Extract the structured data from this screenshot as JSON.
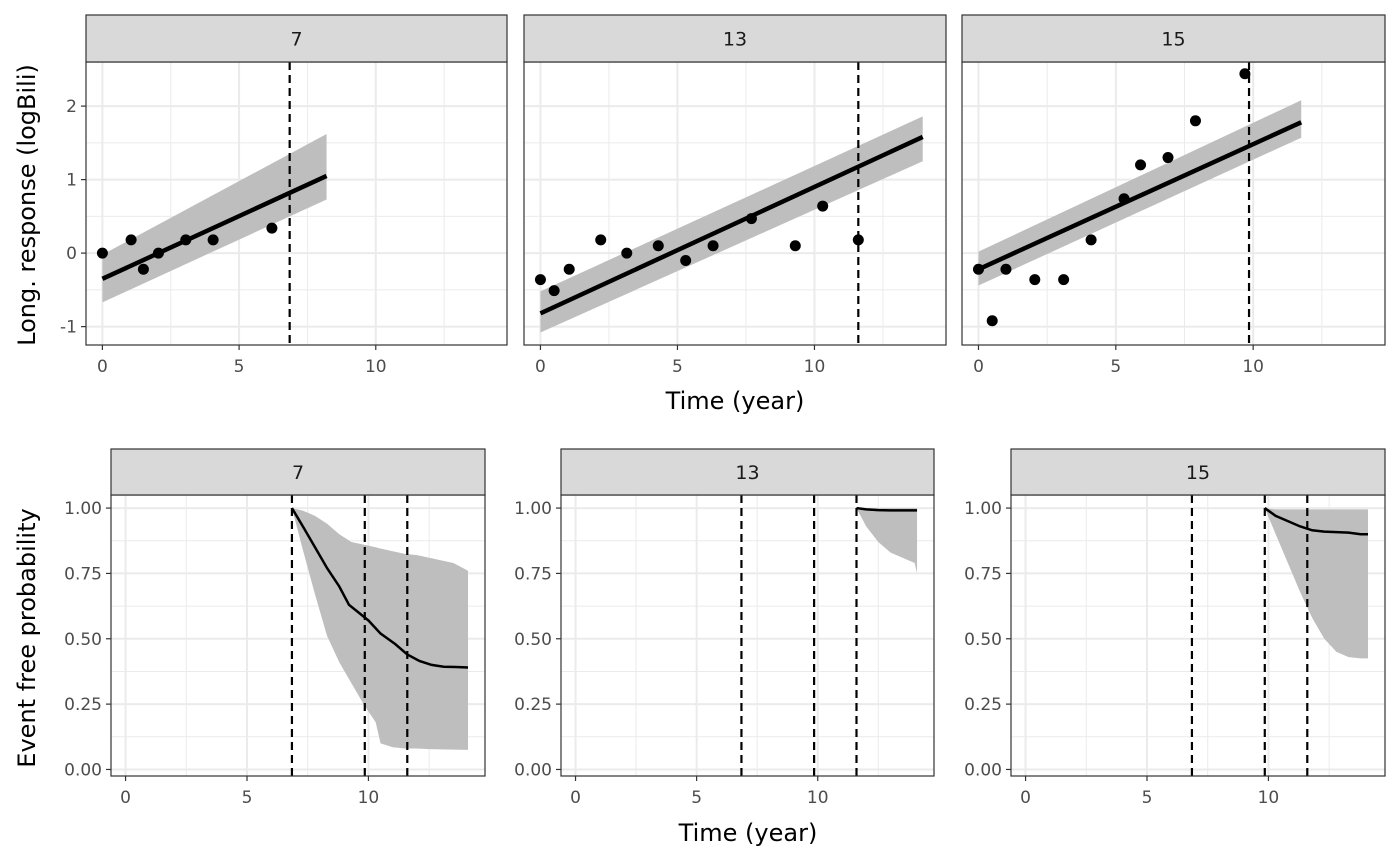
{
  "chart_data": [
    {
      "type": "scatter",
      "facet_label": "7",
      "xlim": [
        -0.6,
        14.8
      ],
      "ylim": [
        -1.25,
        2.6
      ],
      "xticks": [
        0,
        5,
        10
      ],
      "yticks": [
        -1,
        0,
        1,
        2
      ],
      "ytick_labels": [
        "-1",
        "0",
        "1",
        "2"
      ],
      "points": [
        [
          0,
          0
        ],
        [
          1.05,
          0.18
        ],
        [
          1.5,
          -0.22
        ],
        [
          2.05,
          0
        ],
        [
          3.05,
          0.18
        ],
        [
          4.05,
          0.18
        ],
        [
          6.2,
          0.34
        ]
      ],
      "fit_line": [
        [
          0,
          -0.35
        ],
        [
          8.2,
          1.05
        ]
      ],
      "ribbon": {
        "x": [
          0,
          8.2
        ],
        "lower": [
          -0.67,
          0.73
        ],
        "upper": [
          -0.02,
          1.62
        ]
      },
      "vlines": [
        6.85
      ],
      "show_y_axis": true
    },
    {
      "type": "scatter",
      "facet_label": "13",
      "xlim": [
        -0.6,
        14.8
      ],
      "ylim": [
        -1.25,
        2.6
      ],
      "xticks": [
        0,
        5,
        10
      ],
      "yticks": [
        -1,
        0,
        1,
        2
      ],
      "points": [
        [
          0,
          -0.36
        ],
        [
          0.5,
          -0.51
        ],
        [
          1.05,
          -0.22
        ],
        [
          2.2,
          0.18
        ],
        [
          3.15,
          0
        ],
        [
          4.3,
          0.1
        ],
        [
          5.3,
          -0.1
        ],
        [
          6.3,
          0.1
        ],
        [
          7.7,
          0.47
        ],
        [
          9.3,
          0.1
        ],
        [
          10.3,
          0.64
        ],
        [
          11.6,
          0.18
        ]
      ],
      "fit_line": [
        [
          0,
          -0.82
        ],
        [
          13.95,
          1.58
        ]
      ],
      "ribbon": {
        "x": [
          0,
          13.95
        ],
        "lower": [
          -1.08,
          1.25
        ],
        "upper": [
          -0.52,
          1.86
        ]
      },
      "vlines": [
        11.6
      ],
      "show_y_axis": false
    },
    {
      "type": "scatter",
      "facet_label": "15",
      "xlim": [
        -0.6,
        14.8
      ],
      "ylim": [
        -1.25,
        2.6
      ],
      "xticks": [
        0,
        5,
        10
      ],
      "yticks": [
        -1,
        0,
        1,
        2
      ],
      "points": [
        [
          0,
          -0.22
        ],
        [
          0.5,
          -0.92
        ],
        [
          1.0,
          -0.22
        ],
        [
          2.05,
          -0.36
        ],
        [
          3.1,
          -0.36
        ],
        [
          4.1,
          0.18
        ],
        [
          5.3,
          0.74
        ],
        [
          5.9,
          1.2
        ],
        [
          6.9,
          1.3
        ],
        [
          7.9,
          1.8
        ],
        [
          9.7,
          2.44
        ]
      ],
      "fit_line": [
        [
          0,
          -0.22
        ],
        [
          11.75,
          1.78
        ]
      ],
      "ribbon": {
        "x": [
          0,
          11.75
        ],
        "lower": [
          -0.44,
          1.57
        ],
        "upper": [
          0.02,
          2.08
        ]
      },
      "vlines": [
        9.85
      ],
      "show_y_axis": false
    },
    {
      "type": "line",
      "facet_label": "7",
      "xlim": [
        -0.6,
        14.8
      ],
      "ylim": [
        -0.025,
        1.05
      ],
      "xticks": [
        0,
        5,
        10
      ],
      "yticks": [
        0,
        0.25,
        0.5,
        0.75,
        1
      ],
      "ytick_labels": [
        "0.00",
        "0.25",
        "0.50",
        "0.75",
        "1.00"
      ],
      "line": [
        [
          6.85,
          1.0
        ],
        [
          7.3,
          0.93
        ],
        [
          7.8,
          0.85
        ],
        [
          8.3,
          0.77
        ],
        [
          8.8,
          0.7
        ],
        [
          9.2,
          0.63
        ],
        [
          9.6,
          0.6
        ],
        [
          10.0,
          0.57
        ],
        [
          10.5,
          0.52
        ],
        [
          11.1,
          0.48
        ],
        [
          11.6,
          0.44
        ],
        [
          12.1,
          0.415
        ],
        [
          12.6,
          0.4
        ],
        [
          13.1,
          0.393
        ],
        [
          13.6,
          0.392
        ],
        [
          14.1,
          0.39
        ]
      ],
      "ribbon": {
        "x": [
          6.85,
          7.3,
          7.8,
          8.3,
          8.8,
          9.3,
          9.8,
          10.3,
          10.5,
          11.0,
          11.5,
          12.0,
          12.5,
          13.0,
          13.5,
          14.1
        ],
        "lower": [
          1.0,
          0.84,
          0.67,
          0.51,
          0.41,
          0.33,
          0.25,
          0.18,
          0.1,
          0.085,
          0.08,
          0.08,
          0.078,
          0.077,
          0.076,
          0.075
        ],
        "upper": [
          1.0,
          0.99,
          0.97,
          0.94,
          0.9,
          0.87,
          0.86,
          0.85,
          0.845,
          0.835,
          0.825,
          0.82,
          0.81,
          0.8,
          0.79,
          0.76
        ]
      },
      "vlines": [
        6.85,
        9.85,
        11.6
      ],
      "show_y_axis": true
    },
    {
      "type": "line",
      "facet_label": "13",
      "xlim": [
        -0.6,
        14.8
      ],
      "ylim": [
        -0.025,
        1.05
      ],
      "xticks": [
        0,
        5,
        10
      ],
      "yticks": [
        0,
        0.25,
        0.5,
        0.75,
        1
      ],
      "ytick_labels": [
        "0.00",
        "0.25",
        "0.50",
        "0.75",
        "1.00"
      ],
      "line": [
        [
          11.6,
          1.0
        ],
        [
          12.0,
          0.995
        ],
        [
          12.5,
          0.992
        ],
        [
          13.0,
          0.991
        ],
        [
          13.5,
          0.991
        ],
        [
          14.1,
          0.991
        ]
      ],
      "ribbon": {
        "x": [
          11.6,
          12.0,
          12.5,
          13.0,
          13.5,
          14.0,
          14.1
        ],
        "lower": [
          1.0,
          0.93,
          0.87,
          0.83,
          0.81,
          0.79,
          0.75
        ],
        "upper": [
          1.0,
          1.0,
          1.0,
          1.0,
          1.0,
          1.0,
          1.0
        ]
      },
      "vlines": [
        6.85,
        9.85,
        11.6
      ],
      "show_y_axis": true
    },
    {
      "type": "line",
      "facet_label": "15",
      "xlim": [
        -0.6,
        14.8
      ],
      "ylim": [
        -0.025,
        1.05
      ],
      "xticks": [
        0,
        5,
        10
      ],
      "yticks": [
        0,
        0.25,
        0.5,
        0.75,
        1
      ],
      "ytick_labels": [
        "0.00",
        "0.25",
        "0.50",
        "0.75",
        "1.00"
      ],
      "line": [
        [
          9.85,
          1.0
        ],
        [
          10.3,
          0.97
        ],
        [
          10.8,
          0.95
        ],
        [
          11.3,
          0.93
        ],
        [
          11.8,
          0.915
        ],
        [
          12.3,
          0.91
        ],
        [
          12.8,
          0.908
        ],
        [
          13.3,
          0.906
        ],
        [
          13.8,
          0.9
        ],
        [
          14.1,
          0.9
        ]
      ],
      "ribbon": {
        "x": [
          9.85,
          10.3,
          10.8,
          11.3,
          11.8,
          12.3,
          12.8,
          13.3,
          13.8,
          14.1
        ],
        "lower": [
          1.0,
          0.9,
          0.79,
          0.68,
          0.58,
          0.5,
          0.45,
          0.43,
          0.425,
          0.425
        ],
        "upper": [
          1.0,
          0.995,
          0.995,
          0.995,
          0.995,
          0.995,
          0.995,
          0.995,
          0.995,
          0.995
        ]
      },
      "vlines": [
        6.85,
        9.85,
        11.6
      ],
      "show_y_axis": true
    }
  ],
  "axis_titles": {
    "top_x": "Time (year)",
    "top_y": "Long. response (logBili)",
    "bottom_x": "Time (year)",
    "bottom_y": "Event free probability"
  },
  "colors": {
    "strip_fill": "#d9d9d9",
    "ribbon": "#bebebe",
    "grid": "#ebebeb",
    "line": "#000000"
  }
}
